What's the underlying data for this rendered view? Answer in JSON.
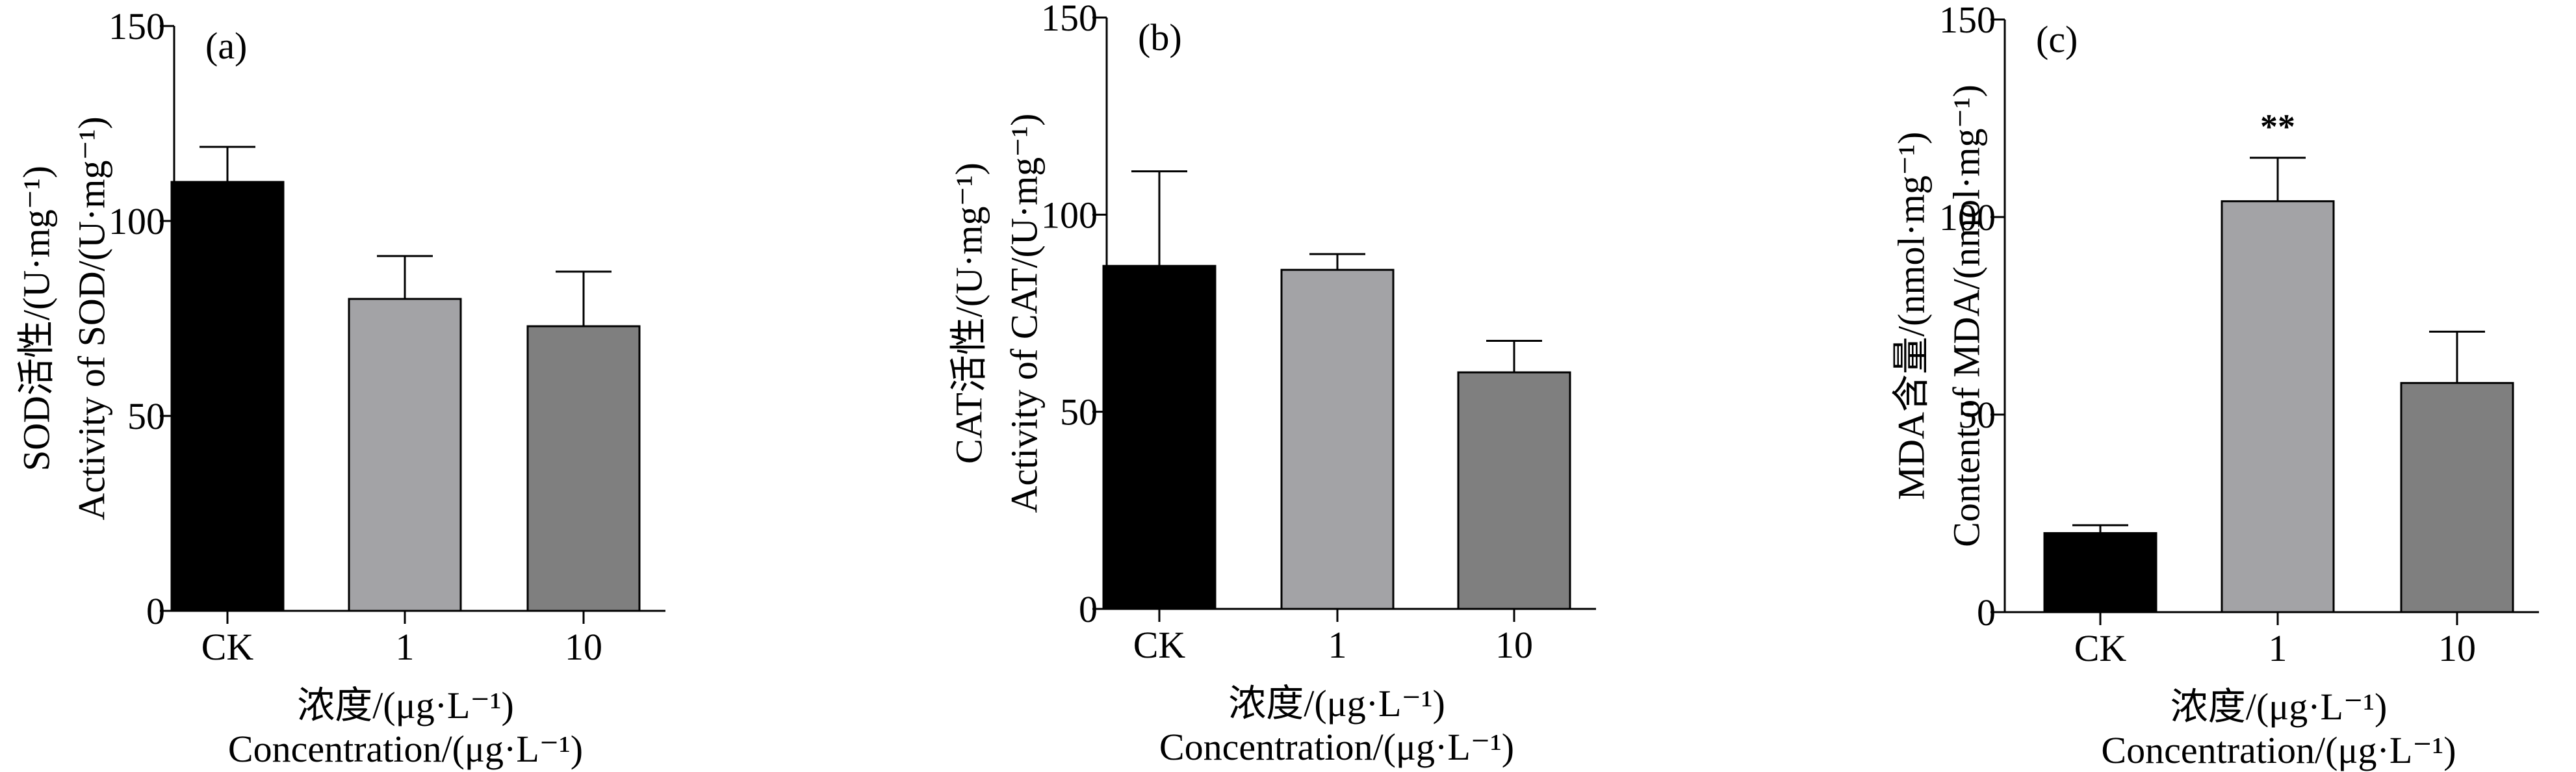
{
  "chart_data": [
    {
      "type": "bar",
      "panel": "(a)",
      "categories": [
        "CK",
        "1",
        "10"
      ],
      "values": [
        110,
        80,
        73
      ],
      "errors": [
        9,
        11,
        14
      ],
      "ylim": [
        0,
        150
      ],
      "yticks": [
        "0",
        "50",
        "100",
        "150"
      ],
      "ylabel_cn": "SOD活性/(U·mg⁻¹)",
      "ylabel_en": "Activity of SOD/(U·mg⁻¹)",
      "xlabel_cn": "浓度/(μg·L⁻¹)",
      "xlabel_en": "Concentration/(μg·L⁻¹)",
      "annotations": [
        "",
        "",
        ""
      ],
      "colors": [
        "#000000",
        "#a3a3a6",
        "#7f7f7f"
      ]
    },
    {
      "type": "bar",
      "panel": "(b)",
      "categories": [
        "CK",
        "1",
        "10"
      ],
      "values": [
        87,
        86,
        60
      ],
      "errors": [
        24,
        4,
        8
      ],
      "ylim": [
        0,
        150
      ],
      "yticks": [
        "0",
        "50",
        "100",
        "150"
      ],
      "ylabel_cn": "CAT活性/(U·mg⁻¹)",
      "ylabel_en": "Activity of CAT/(U·mg⁻¹)",
      "xlabel_cn": "浓度/(μg·L⁻¹)",
      "xlabel_en": "Concentration/(μg·L⁻¹)",
      "annotations": [
        "",
        "",
        ""
      ],
      "colors": [
        "#000000",
        "#a3a3a6",
        "#7f7f7f"
      ]
    },
    {
      "type": "bar",
      "panel": "(c)",
      "categories": [
        "CK",
        "1",
        "10"
      ],
      "values": [
        20,
        104,
        58
      ],
      "errors": [
        2,
        11,
        13
      ],
      "ylim": [
        0,
        150
      ],
      "yticks": [
        "0",
        "50",
        "100",
        "150"
      ],
      "ylabel_cn": "MDA含量/(nmol·mg⁻¹)",
      "ylabel_en": "Content of MDA/(nmol·mg⁻¹)",
      "xlabel_cn": "浓度/(μg·L⁻¹)",
      "xlabel_en": "Concentration/(μg·L⁻¹)",
      "annotations": [
        "",
        "**",
        ""
      ],
      "colors": [
        "#000000",
        "#a3a3a6",
        "#7f7f7f"
      ]
    }
  ]
}
